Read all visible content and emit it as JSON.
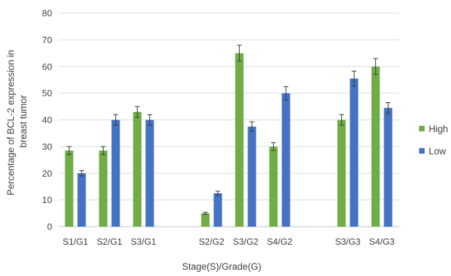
{
  "chart_data": {
    "type": "bar",
    "xlabel": "Stage(S)/Grade(G)",
    "ylabel_lines": [
      "Percentage of BCL-2 expression in",
      "breast tumor"
    ],
    "ylim": [
      0,
      80
    ],
    "yticks": [
      0,
      10,
      20,
      30,
      40,
      50,
      60,
      70,
      80
    ],
    "grid": true,
    "legend_position": "right",
    "categories": [
      "S1/G1",
      "S2/G1",
      "S3/G1",
      "",
      "S2/G2",
      "S3/G2",
      "S4/G2",
      "",
      "S3/G3",
      "S4/G3"
    ],
    "series": [
      {
        "name": "High",
        "color": "#70AD47",
        "values": [
          28.5,
          28.5,
          43,
          null,
          5,
          65,
          30,
          null,
          40,
          60
        ],
        "errors": [
          1.5,
          1.5,
          2,
          null,
          0.4,
          3,
          1.5,
          null,
          2,
          3
        ]
      },
      {
        "name": "Low",
        "color": "#4472C4",
        "values": [
          20,
          40,
          40,
          null,
          12.5,
          37.5,
          50,
          null,
          55.5,
          44.5
        ],
        "errors": [
          1,
          2,
          2,
          null,
          0.8,
          1.8,
          2.5,
          null,
          2.8,
          2
        ]
      }
    ]
  }
}
